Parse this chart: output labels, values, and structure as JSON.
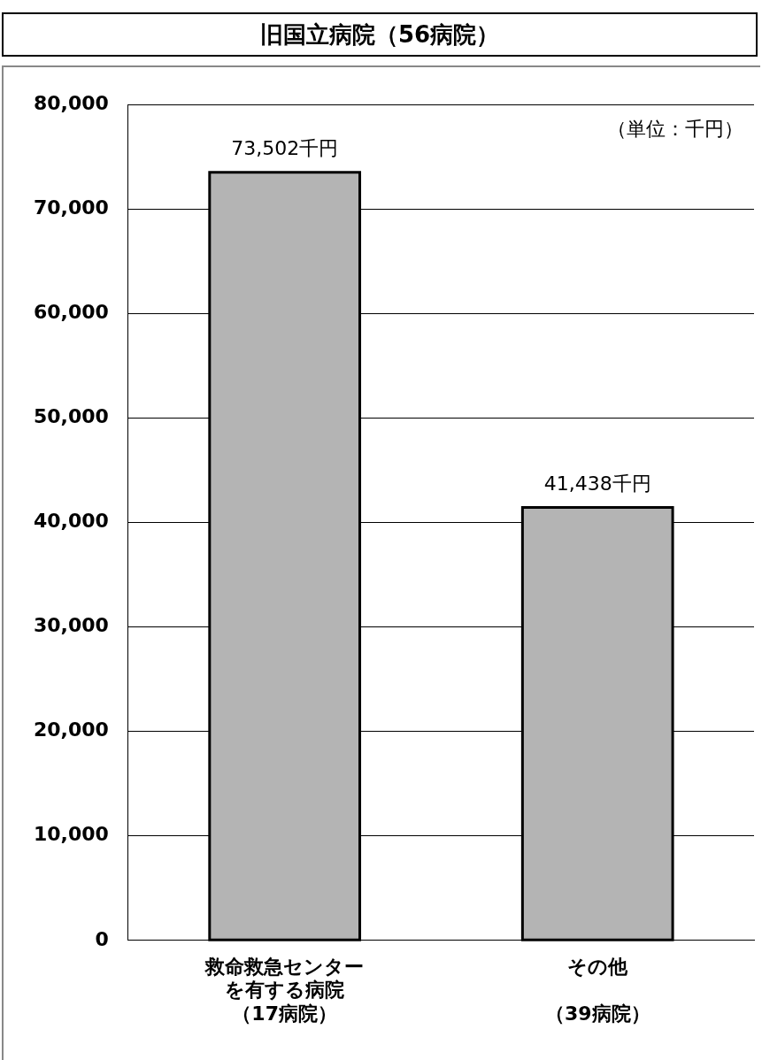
{
  "chart_data": {
    "type": "bar",
    "title": "旧国立病院（56病院）",
    "categories": [
      "救命救急センターを有する病院（17病院）",
      "その他（39病院）"
    ],
    "values": [
      73502,
      41438
    ],
    "value_labels": [
      "73,502千円",
      "41,438千円"
    ],
    "color": "#b4b4b4",
    "ylim": [
      0,
      80000
    ],
    "yticks": [
      {
        "value": 0,
        "label": "0"
      },
      {
        "value": 10000,
        "label": "10,000"
      },
      {
        "value": 20000,
        "label": "20,000"
      },
      {
        "value": 30000,
        "label": "30,000"
      },
      {
        "value": 40000,
        "label": "40,000"
      },
      {
        "value": 50000,
        "label": "50,000"
      },
      {
        "value": 60000,
        "label": "60,000"
      },
      {
        "value": 70000,
        "label": "70,000"
      },
      {
        "value": 80000,
        "label": "80,000"
      }
    ],
    "grid": "y",
    "legend": false,
    "annotations": [
      "（単位：千円）"
    ]
  }
}
